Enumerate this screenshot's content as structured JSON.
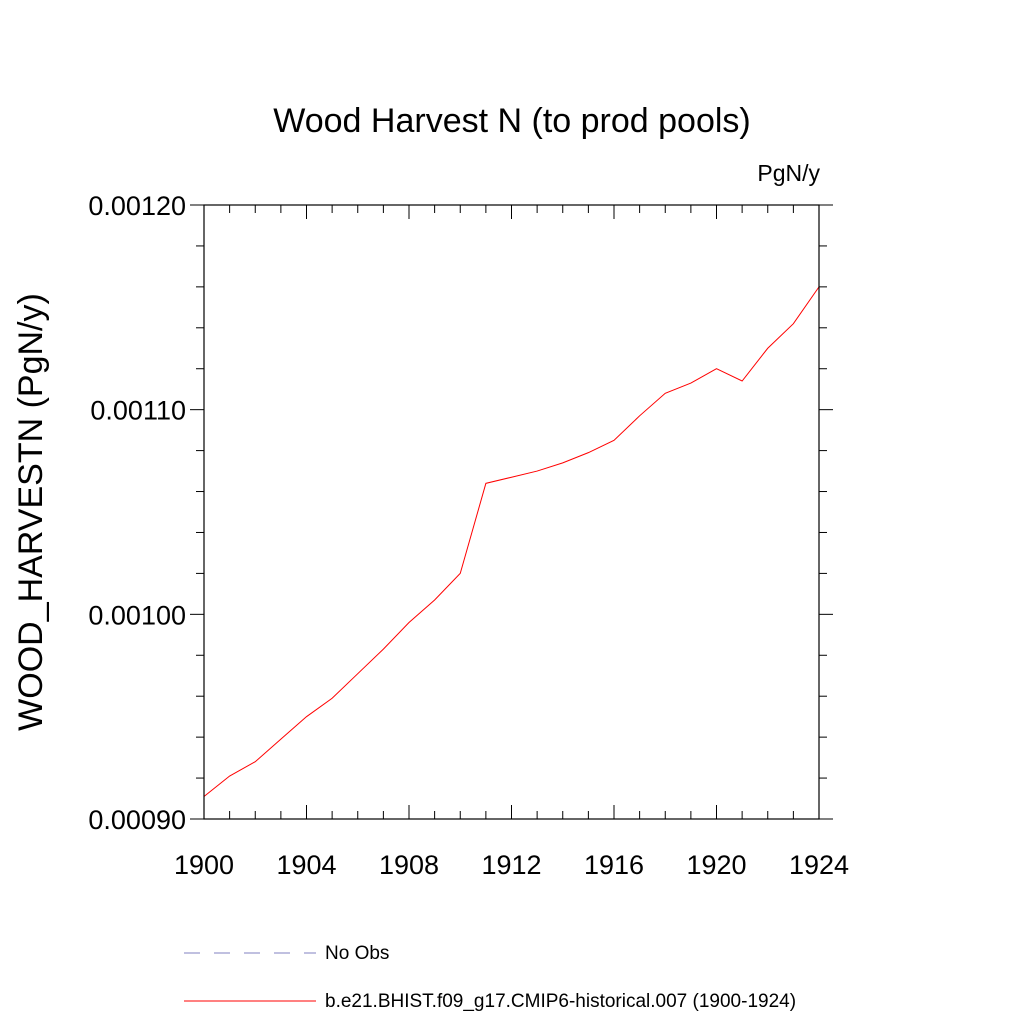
{
  "chart_data": {
    "type": "line",
    "title": "Wood Harvest N (to prod pools)",
    "units_label": "PgN/y",
    "ylabel": "WOOD_HARVESTN  (PgN/y)",
    "xlabel": "",
    "xlim": [
      1900,
      1924
    ],
    "ylim": [
      0.0009,
      0.0012
    ],
    "x_ticks": [
      1900,
      1904,
      1908,
      1912,
      1916,
      1920,
      1924
    ],
    "x_tick_labels": [
      "1900",
      "1904",
      "1908",
      "1912",
      "1916",
      "1920",
      "1924"
    ],
    "x_minor_step": 1,
    "y_ticks": [
      0.0009,
      0.001,
      0.0011,
      0.0012
    ],
    "y_tick_labels": [
      "0.00090",
      "0.00100",
      "0.00110",
      "0.00120"
    ],
    "y_minor_step": 2e-05,
    "grid": false,
    "legend_position": "bottom",
    "series": [
      {
        "name": "No Obs",
        "color": "#8080c0",
        "style": "dashed",
        "x": [],
        "values": []
      },
      {
        "name": "b.e21.BHIST.f09_g17.CMIP6-historical.007 (1900-1924)",
        "color": "#ff0000",
        "style": "solid",
        "x": [
          1900,
          1901,
          1902,
          1903,
          1904,
          1905,
          1906,
          1907,
          1908,
          1909,
          1910,
          1911,
          1912,
          1913,
          1914,
          1915,
          1916,
          1917,
          1918,
          1919,
          1920,
          1921,
          1922,
          1923,
          1924
        ],
        "values": [
          0.000911,
          0.000921,
          0.000928,
          0.000939,
          0.00095,
          0.000959,
          0.000971,
          0.000983,
          0.000996,
          0.001007,
          0.00102,
          0.001064,
          0.001067,
          0.00107,
          0.001074,
          0.001079,
          0.001085,
          0.001097,
          0.001108,
          0.001113,
          0.00112,
          0.001114,
          0.00113,
          0.001142,
          0.00116
        ]
      }
    ]
  }
}
